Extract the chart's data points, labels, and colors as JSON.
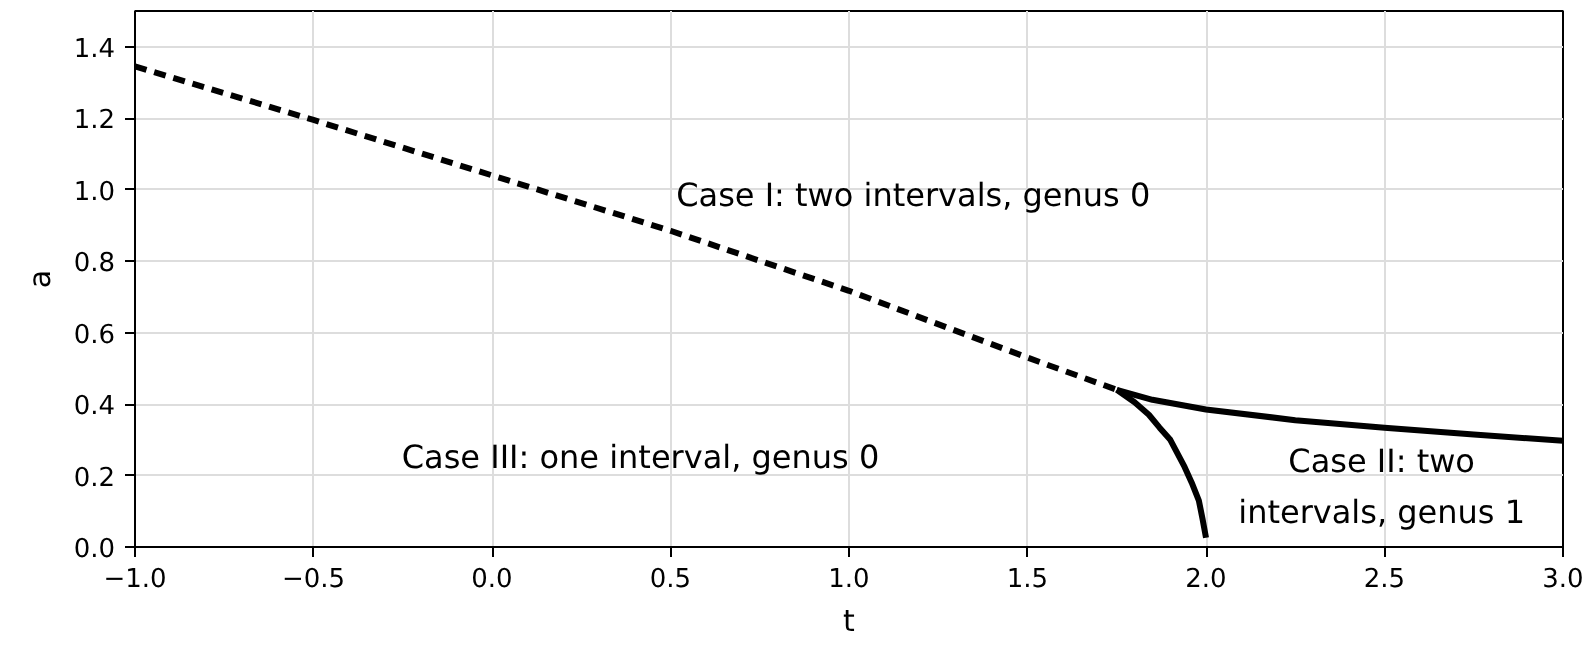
{
  "chart_data": {
    "type": "line",
    "xlabel": "t",
    "ylabel": "a",
    "xlim": [
      -1.0,
      3.0
    ],
    "ylim": [
      0.0,
      1.5
    ],
    "xticks": [
      {
        "value": -1.0,
        "label": "−1.0"
      },
      {
        "value": -0.5,
        "label": "−0.5"
      },
      {
        "value": 0.0,
        "label": "0.0"
      },
      {
        "value": 0.5,
        "label": "0.5"
      },
      {
        "value": 1.0,
        "label": "1.0"
      },
      {
        "value": 1.5,
        "label": "1.5"
      },
      {
        "value": 2.0,
        "label": "2.0"
      },
      {
        "value": 2.5,
        "label": "2.5"
      },
      {
        "value": 3.0,
        "label": "3.0"
      }
    ],
    "yticks": [
      {
        "value": 0.0,
        "label": "0.0"
      },
      {
        "value": 0.2,
        "label": "0.2"
      },
      {
        "value": 0.4,
        "label": "0.4"
      },
      {
        "value": 0.6,
        "label": "0.6"
      },
      {
        "value": 0.8,
        "label": "0.8"
      },
      {
        "value": 1.0,
        "label": "1.0"
      },
      {
        "value": 1.2,
        "label": "1.2"
      },
      {
        "value": 1.4,
        "label": "1.4"
      }
    ],
    "grid": true,
    "marker": "none",
    "series": [
      {
        "color": "#000000",
        "line_style": "dashed",
        "x": [
          -1.0,
          -0.5,
          0.0,
          0.5,
          1.0,
          1.5,
          1.75
        ],
        "values": [
          1.345,
          1.195,
          1.04,
          0.885,
          0.717,
          0.53,
          0.44
        ]
      },
      {
        "color": "#000000",
        "line_style": "solid",
        "x": [
          1.75,
          1.85,
          2.0,
          2.25,
          2.5,
          2.75,
          3.0
        ],
        "values": [
          0.44,
          0.412,
          0.385,
          0.355,
          0.334,
          0.315,
          0.297
        ]
      },
      {
        "color": "#000000",
        "line_style": "solid",
        "x": [
          1.75,
          1.8,
          1.84,
          1.87,
          1.9,
          1.94,
          1.96,
          1.98,
          1.99,
          2.0
        ],
        "values": [
          0.44,
          0.405,
          0.37,
          0.334,
          0.3,
          0.224,
          0.18,
          0.13,
          0.08,
          0.026
        ]
      }
    ],
    "annotations": [
      "Case I: two intervals, genus 0",
      "Case III: one interval, genus 0",
      "Case II: two\nintervals, genus 1"
    ]
  }
}
